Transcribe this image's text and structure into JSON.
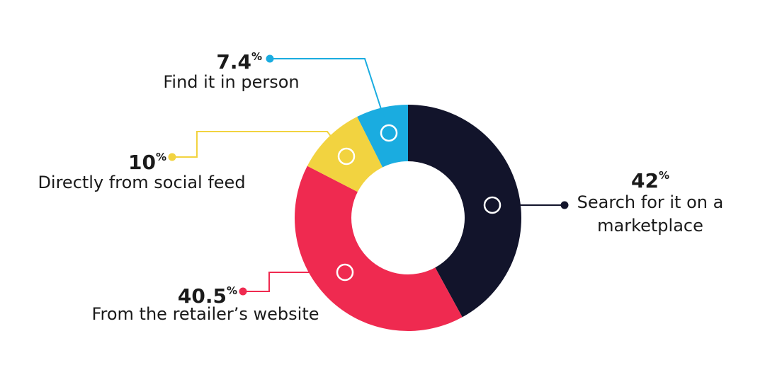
{
  "chart_data": {
    "type": "donut",
    "categories": [
      "Search for it on a marketplace",
      "From the retailer’s website",
      "Directly from social feed",
      "Find it in person"
    ],
    "values": [
      42,
      40.5,
      10,
      7.4
    ],
    "unit": "%",
    "colors": [
      "#12142b",
      "#ef2a50",
      "#f2d340",
      "#1aace0"
    ]
  }
}
